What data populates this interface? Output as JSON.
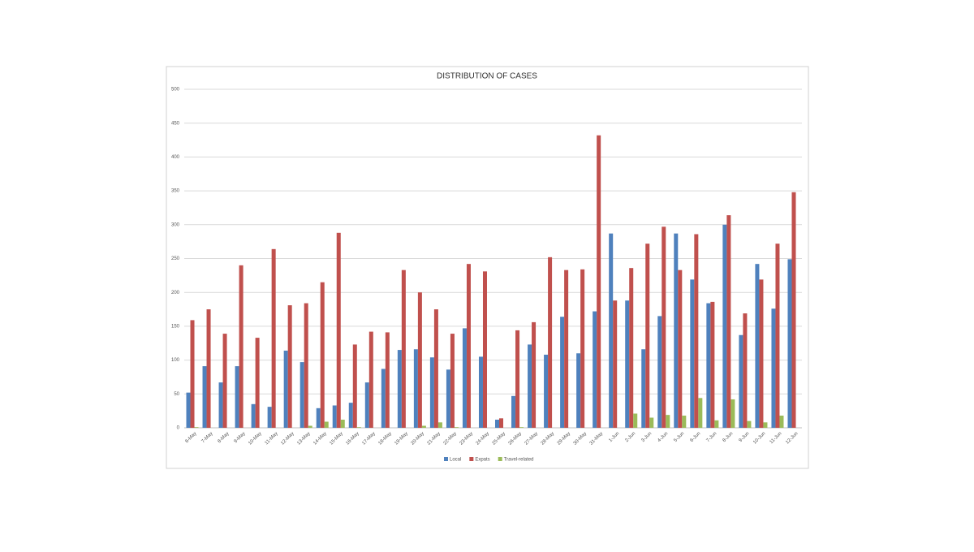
{
  "chart_data": {
    "type": "bar",
    "title": "DISTRIBUTION OF CASES",
    "categories": [
      "6-May",
      "7-May",
      "8-May",
      "9-May",
      "10-May",
      "11-May",
      "12-May",
      "13-May",
      "14-May",
      "15-May",
      "16-May",
      "17-May",
      "18-May",
      "19-May",
      "20-May",
      "21-May",
      "22-May",
      "23-May",
      "24-May",
      "25-May",
      "26-May",
      "27-May",
      "28-May",
      "29-May",
      "30-May",
      "31-May",
      "1-Jun",
      "2-Jun",
      "3-Jun",
      "4-Jun",
      "5-Jun",
      "6-Jun",
      "7-Jun",
      "8-Jun",
      "9-Jun",
      "10-Jun",
      "11-Jun",
      "12-Jun"
    ],
    "series": [
      {
        "name": "Local",
        "color": "#4f81bd",
        "values": [
          52,
          91,
          67,
          91,
          35,
          31,
          114,
          97,
          29,
          33,
          37,
          67,
          87,
          115,
          116,
          104,
          86,
          147,
          105,
          12,
          47,
          123,
          108,
          164,
          110,
          172,
          287,
          188,
          116,
          165,
          287,
          219,
          184,
          300,
          137,
          242,
          176,
          249
        ]
      },
      {
        "name": "Expats",
        "color": "#c0504d",
        "values": [
          159,
          175,
          139,
          240,
          133,
          264,
          181,
          184,
          215,
          288,
          123,
          142,
          141,
          233,
          200,
          175,
          139,
          242,
          231,
          14,
          144,
          156,
          252,
          233,
          234,
          432,
          188,
          236,
          272,
          297,
          233,
          286,
          186,
          314,
          169,
          219,
          272,
          348
        ]
      },
      {
        "name": "Travel-related",
        "color": "#9bbb59",
        "values": [
          1,
          0,
          0,
          0,
          0,
          0,
          0,
          3,
          9,
          12,
          1,
          0,
          0,
          0,
          3,
          8,
          1,
          0,
          0,
          0,
          1,
          0,
          0,
          0,
          0,
          0,
          0,
          21,
          15,
          19,
          18,
          44,
          11,
          42,
          10,
          8,
          18,
          0
        ]
      }
    ],
    "ylim": [
      0,
      500
    ],
    "yticks": [
      0,
      50,
      100,
      150,
      200,
      250,
      300,
      350,
      400,
      450,
      500
    ],
    "grid": true,
    "legend": "bottom"
  }
}
